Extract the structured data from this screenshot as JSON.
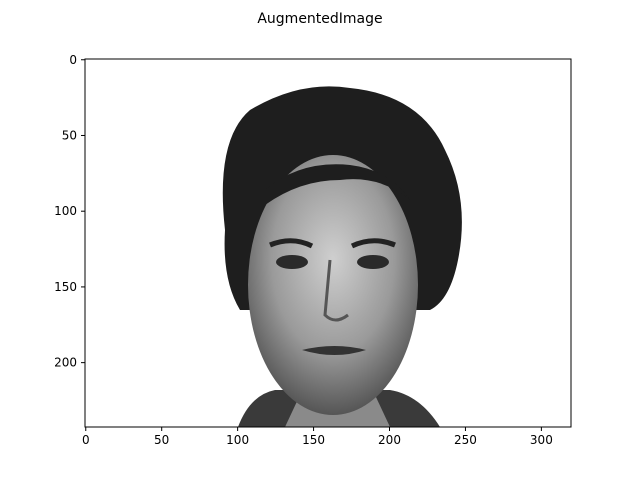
{
  "chart_data": {
    "type": "image",
    "title": "AugmentedImage",
    "xlim": [
      -0.5,
      319.5
    ],
    "ylim": [
      242.5,
      -0.5
    ],
    "xticks": [
      0,
      50,
      100,
      150,
      200,
      250,
      300
    ],
    "yticks": [
      0,
      50,
      100,
      150,
      200
    ]
  }
}
